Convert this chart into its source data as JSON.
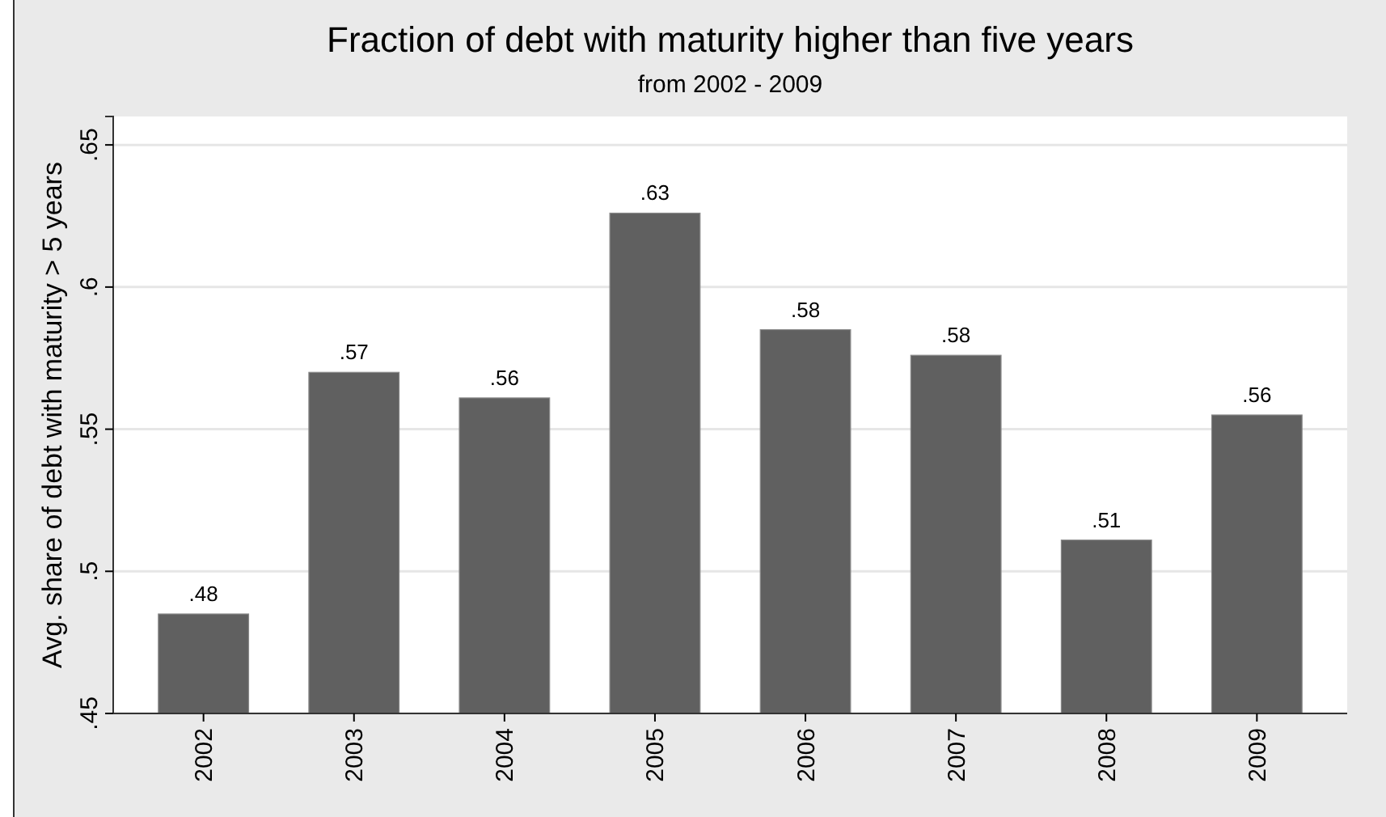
{
  "chart_data": {
    "type": "bar",
    "title": "Fraction of debt with maturity higher than five years",
    "subtitle": "from 2002 - 2009",
    "ylabel": "Avg. share of  debt with maturity > 5 years",
    "categories": [
      "2002",
      "2003",
      "2004",
      "2005",
      "2006",
      "2007",
      "2008",
      "2009"
    ],
    "values": [
      0.485,
      0.57,
      0.561,
      0.626,
      0.585,
      0.576,
      0.511,
      0.555
    ],
    "value_labels": [
      ".48",
      ".57",
      ".56",
      ".63",
      ".58",
      ".58",
      ".51",
      ".56"
    ],
    "color": "#606060",
    "ylim": [
      0.45,
      0.66
    ],
    "yticks": [
      {
        "value": 0.45,
        "label": ".45"
      },
      {
        "value": 0.5,
        "label": ".5"
      },
      {
        "value": 0.55,
        "label": ".55"
      },
      {
        "value": 0.6,
        "label": ".6"
      },
      {
        "value": 0.65,
        "label": ".65"
      }
    ],
    "grid": "y"
  }
}
